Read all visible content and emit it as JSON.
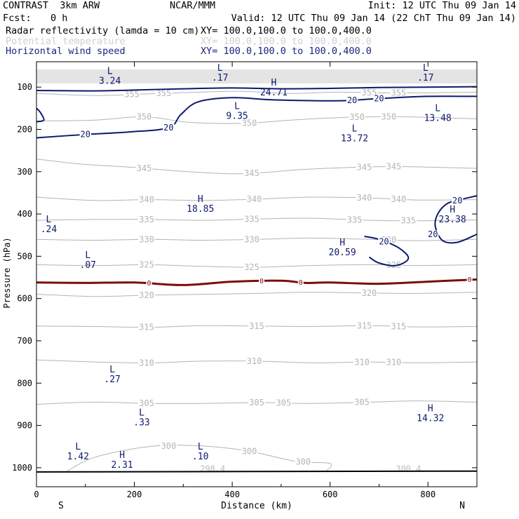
{
  "header": {
    "left_line1": "CONTRAST  3km ARW",
    "center_line1": "NCAR/MMM",
    "right_line1": "Init: 12 UTC Thu 09 Jan 14",
    "fcst_label": "Fcst:",
    "fcst_value": "0 h",
    "valid_line": "Valid: 12 UTC Thu 09 Jan 14 (22 ChT Thu 09 Jan 14)",
    "fields": [
      {
        "name": "Radar reflectivity (lamda = 10 cm)",
        "xy": "XY= 100.0,100.0 to 100.0,400.0",
        "color": "#000000"
      },
      {
        "name": "Potential temperature",
        "xy": "XY= 100.0,100.0 to 100.0,400.0",
        "color": "#d0d0d0"
      },
      {
        "name": "Horizontal wind speed",
        "xy": "XY= 100.0,100.0 to 100.0,400.0",
        "color": "#1a237e"
      }
    ]
  },
  "colors": {
    "theta": "#b4b4b4",
    "wind": "#0d1a6e",
    "zero": "#7a0e0e",
    "frame": "#000000",
    "terrain": "#000000"
  },
  "chart_data": {
    "type": "contour",
    "xlabel": "Distance (km)",
    "ylabel": "Pressure (hPa)",
    "xlim": [
      0,
      900
    ],
    "ylim": [
      1045,
      40
    ],
    "x_ticks": [
      0,
      200,
      400,
      600,
      800
    ],
    "y_ticks": [
      100,
      200,
      300,
      400,
      500,
      600,
      700,
      800,
      900,
      1000
    ],
    "x_end_labels": {
      "left": "S",
      "right": "N"
    },
    "theta_contours": [
      {
        "level": 355,
        "points": [
          [
            0,
            115
          ],
          [
            120,
            120
          ],
          [
            230,
            116
          ],
          [
            330,
            112
          ],
          [
            420,
            110
          ],
          [
            520,
            115
          ],
          [
            620,
            112
          ],
          [
            740,
            114
          ],
          [
            900,
            112
          ]
        ],
        "labels": [
          {
            "text": "355",
            "x": 195
          },
          {
            "text": "355",
            "x": 260
          },
          {
            "text": "355",
            "x": 680
          },
          {
            "text": "355",
            "x": 740
          }
        ]
      },
      {
        "level": 350,
        "points": [
          [
            0,
            180
          ],
          [
            120,
            178
          ],
          [
            220,
            170
          ],
          [
            310,
            183
          ],
          [
            420,
            186
          ],
          [
            520,
            178
          ],
          [
            620,
            172
          ],
          [
            740,
            170
          ],
          [
            900,
            175
          ]
        ],
        "labels": [
          {
            "text": "350",
            "x": 220
          },
          {
            "text": "350",
            "x": 435
          },
          {
            "text": "350",
            "x": 655
          },
          {
            "text": "350",
            "x": 720
          }
        ]
      },
      {
        "level": 345,
        "points": [
          [
            0,
            270
          ],
          [
            90,
            282
          ],
          [
            200,
            290
          ],
          [
            310,
            300
          ],
          [
            420,
            305
          ],
          [
            540,
            295
          ],
          [
            640,
            290
          ],
          [
            740,
            288
          ],
          [
            900,
            292
          ]
        ],
        "labels": [
          {
            "text": "345",
            "x": 220
          },
          {
            "text": "345",
            "x": 440
          },
          {
            "text": "345",
            "x": 670
          },
          {
            "text": "345",
            "x": 730
          }
        ]
      },
      {
        "level": 340,
        "points": [
          [
            0,
            360
          ],
          [
            120,
            368
          ],
          [
            230,
            366
          ],
          [
            340,
            368
          ],
          [
            450,
            365
          ],
          [
            560,
            360
          ],
          [
            680,
            362
          ],
          [
            780,
            367
          ],
          [
            900,
            366
          ]
        ],
        "labels": [
          {
            "text": "340",
            "x": 225
          },
          {
            "text": "340",
            "x": 445
          },
          {
            "text": "340",
            "x": 670
          },
          {
            "text": "340",
            "x": 740
          }
        ]
      },
      {
        "level": 335,
        "points": [
          [
            0,
            415
          ],
          [
            120,
            413
          ],
          [
            230,
            413
          ],
          [
            340,
            415
          ],
          [
            450,
            412
          ],
          [
            560,
            410
          ],
          [
            680,
            415
          ],
          [
            780,
            416
          ],
          [
            900,
            414
          ]
        ],
        "labels": [
          {
            "text": "335",
            "x": 225
          },
          {
            "text": "335",
            "x": 440
          },
          {
            "text": "335",
            "x": 650
          },
          {
            "text": "335",
            "x": 760
          }
        ]
      },
      {
        "level": 330,
        "points": [
          [
            0,
            460
          ],
          [
            120,
            462
          ],
          [
            230,
            460
          ],
          [
            340,
            462
          ],
          [
            450,
            460
          ],
          [
            560,
            457
          ],
          [
            680,
            460
          ],
          [
            780,
            463
          ],
          [
            900,
            460
          ]
        ],
        "labels": [
          {
            "text": "330",
            "x": 225
          },
          {
            "text": "330",
            "x": 440
          },
          {
            "text": "330",
            "x": 720
          }
        ]
      },
      {
        "level": 325,
        "points": [
          [
            0,
            520
          ],
          [
            120,
            522
          ],
          [
            230,
            520
          ],
          [
            340,
            524
          ],
          [
            450,
            526
          ],
          [
            560,
            522
          ],
          [
            680,
            520
          ],
          [
            780,
            522
          ],
          [
            900,
            520
          ]
        ],
        "labels": [
          {
            "text": "325",
            "x": 225
          },
          {
            "text": "325",
            "x": 440
          },
          {
            "text": "325",
            "x": 730
          }
        ]
      },
      {
        "level": 320,
        "points": [
          [
            0,
            590
          ],
          [
            120,
            595
          ],
          [
            230,
            592
          ],
          [
            340,
            590
          ],
          [
            450,
            588
          ],
          [
            560,
            585
          ],
          [
            680,
            587
          ],
          [
            780,
            588
          ],
          [
            900,
            585
          ]
        ],
        "labels": [
          {
            "text": "320",
            "x": 225
          },
          {
            "text": "320",
            "x": 680
          }
        ]
      },
      {
        "level": 315,
        "points": [
          [
            0,
            665
          ],
          [
            120,
            666
          ],
          [
            230,
            668
          ],
          [
            340,
            664
          ],
          [
            450,
            665
          ],
          [
            560,
            666
          ],
          [
            680,
            664
          ],
          [
            780,
            667
          ],
          [
            900,
            666
          ]
        ],
        "labels": [
          {
            "text": "315",
            "x": 225
          },
          {
            "text": "315",
            "x": 450
          },
          {
            "text": "315",
            "x": 670
          },
          {
            "text": "315",
            "x": 740
          }
        ]
      },
      {
        "level": 310,
        "points": [
          [
            0,
            745
          ],
          [
            120,
            750
          ],
          [
            230,
            752
          ],
          [
            340,
            748
          ],
          [
            450,
            748
          ],
          [
            560,
            752
          ],
          [
            680,
            750
          ],
          [
            780,
            752
          ],
          [
            900,
            750
          ]
        ],
        "labels": [
          {
            "text": "310",
            "x": 225
          },
          {
            "text": "310",
            "x": 445
          },
          {
            "text": "310",
            "x": 665
          },
          {
            "text": "310",
            "x": 730
          }
        ]
      },
      {
        "level": 305,
        "points": [
          [
            0,
            850
          ],
          [
            120,
            845
          ],
          [
            230,
            848
          ],
          [
            340,
            848
          ],
          [
            450,
            846
          ],
          [
            560,
            848
          ],
          [
            680,
            845
          ],
          [
            780,
            842
          ],
          [
            900,
            845
          ]
        ],
        "labels": [
          {
            "text": "305",
            "x": 225
          },
          {
            "text": "305",
            "x": 450
          },
          {
            "text": "305",
            "x": 505
          },
          {
            "text": "305",
            "x": 665
          }
        ]
      },
      {
        "level": 300,
        "points": [
          [
            60,
            1010
          ],
          [
            120,
            975
          ],
          [
            230,
            950
          ],
          [
            330,
            948
          ],
          [
            430,
            960
          ],
          [
            530,
            985
          ],
          [
            600,
            990
          ],
          [
            590,
            1010
          ]
        ],
        "labels": [
          {
            "text": "300",
            "x": 270
          },
          {
            "text": "300",
            "x": 435
          },
          {
            "text": "300",
            "x": 545
          }
        ]
      }
    ],
    "theta_point_labels": [
      {
        "text": "298.4",
        "x": 360,
        "p": 1003
      },
      {
        "text": "300.4",
        "x": 760,
        "p": 1003
      }
    ],
    "wind_contours": [
      {
        "level": 20,
        "name": "jet-core",
        "points": [
          [
            0,
            108
          ],
          [
            120,
            109
          ],
          [
            200,
            107
          ],
          [
            300,
            104
          ],
          [
            400,
            102
          ],
          [
            500,
            104
          ],
          [
            600,
            103
          ],
          [
            700,
            101
          ],
          [
            800,
            100
          ],
          [
            900,
            99
          ]
        ]
      },
      {
        "level": 20,
        "name": "jet-lower",
        "points": [
          [
            0,
            220
          ],
          [
            100,
            212
          ],
          [
            190,
            206
          ],
          [
            270,
            196
          ],
          [
            295,
            165
          ],
          [
            330,
            135
          ],
          [
            400,
            125
          ],
          [
            480,
            130
          ],
          [
            560,
            132
          ],
          [
            630,
            132
          ],
          [
            700,
            127
          ],
          [
            800,
            122
          ],
          [
            900,
            122
          ]
        ],
        "labels": [
          {
            "text": "20",
            "x": 100
          },
          {
            "text": "20",
            "x": 270
          },
          {
            "text": "20",
            "x": 645
          },
          {
            "text": "20",
            "x": 700
          }
        ]
      },
      {
        "level": 20,
        "name": "left-edge",
        "points": [
          [
            0,
            150
          ],
          [
            8,
            160
          ],
          [
            15,
            178
          ],
          [
            0,
            182
          ]
        ]
      },
      {
        "level": 20,
        "name": "center-loop",
        "points": [
          [
            670,
            453
          ],
          [
            700,
            460
          ],
          [
            740,
            480
          ],
          [
            760,
            505
          ],
          [
            735,
            522
          ],
          [
            700,
            516
          ],
          [
            680,
            502
          ]
        ],
        "labels": [
          {
            "text": "20",
            "x": 710
          }
        ]
      },
      {
        "level": 20,
        "name": "right-loop",
        "points": [
          [
            900,
            357
          ],
          [
            870,
            365
          ],
          [
            840,
            375
          ],
          [
            820,
            400
          ],
          [
            815,
            430
          ],
          [
            830,
            463
          ],
          [
            860,
            467
          ],
          [
            900,
            448
          ]
        ],
        "labels": [
          {
            "text": "20",
            "x": 810
          },
          {
            "text": "20",
            "x": 860
          }
        ]
      }
    ],
    "zero_contour": {
      "level": 0,
      "points": [
        [
          0,
          562
        ],
        [
          100,
          563
        ],
        [
          200,
          562
        ],
        [
          300,
          568
        ],
        [
          400,
          560
        ],
        [
          500,
          558
        ],
        [
          550,
          563
        ],
        [
          600,
          562
        ],
        [
          700,
          565
        ],
        [
          800,
          560
        ],
        [
          900,
          555
        ]
      ],
      "labels": [
        {
          "text": "0",
          "x": 230
        },
        {
          "text": "0",
          "x": 460
        },
        {
          "text": "0",
          "x": 540
        },
        {
          "text": "0",
          "x": 885
        }
      ]
    },
    "terrain": {
      "points": [
        [
          0,
          1010
        ],
        [
          900,
          1008
        ]
      ]
    },
    "top_hatch": {
      "p_top": 60,
      "p_bottom": 92
    },
    "extrema": [
      {
        "type": "L",
        "value": "3.24",
        "x": 150,
        "p": 82,
        "color": "wind"
      },
      {
        "type": "L",
        "value": ".17",
        "x": 375,
        "p": 75,
        "color": "wind"
      },
      {
        "type": "L",
        "value": ".17",
        "x": 795,
        "p": 75,
        "color": "wind"
      },
      {
        "type": "H",
        "value": "24.71",
        "x": 485,
        "p": 110,
        "color": "wind"
      },
      {
        "type": "L",
        "value": "9.35",
        "x": 410,
        "p": 165,
        "color": "wind"
      },
      {
        "type": "L",
        "value": "13.48",
        "x": 820,
        "p": 170,
        "color": "wind"
      },
      {
        "type": "L",
        "value": "13.72",
        "x": 650,
        "p": 218,
        "color": "wind"
      },
      {
        "type": "H",
        "value": "18.85",
        "x": 335,
        "p": 385,
        "color": "wind"
      },
      {
        "type": "H",
        "value": "23.38",
        "x": 850,
        "p": 410,
        "color": "wind"
      },
      {
        "type": "L",
        "value": ".24",
        "x": 25,
        "p": 433,
        "color": "wind"
      },
      {
        "type": "H",
        "value": "20.59",
        "x": 625,
        "p": 488,
        "color": "wind"
      },
      {
        "type": "L",
        "value": ".07",
        "x": 105,
        "p": 518,
        "color": "wind"
      },
      {
        "type": "L",
        "value": ".27",
        "x": 155,
        "p": 788,
        "color": "wind"
      },
      {
        "type": "H",
        "value": "14.32",
        "x": 805,
        "p": 880,
        "color": "wind"
      },
      {
        "type": "L",
        "value": ".33",
        "x": 215,
        "p": 890,
        "color": "wind"
      },
      {
        "type": "L",
        "value": "1.42",
        "x": 85,
        "p": 970,
        "color": "wind"
      },
      {
        "type": "L",
        "value": ".10",
        "x": 335,
        "p": 970,
        "color": "wind"
      },
      {
        "type": "H",
        "value": "2.31",
        "x": 175,
        "p": 990,
        "color": "wind"
      }
    ]
  }
}
